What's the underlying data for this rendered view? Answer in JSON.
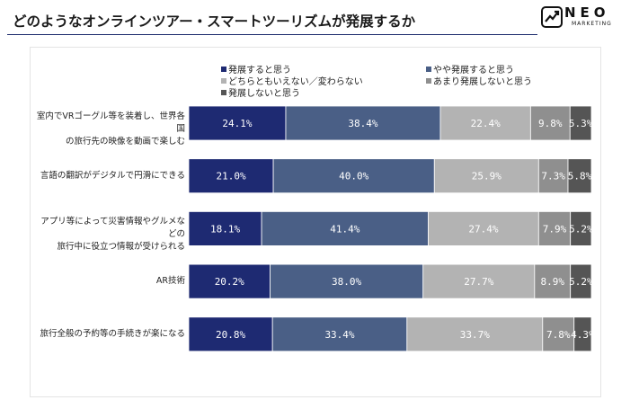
{
  "header": {
    "title": "どのようなオンラインツアー・スマートツーリズムが発展するか",
    "logo_word": "NEO",
    "logo_sub": "MARKETING",
    "logo_mark": "neo-marketing-logo-icon"
  },
  "colors": {
    "title_rule": "#1b2a6b",
    "series": [
      "#1e2a72",
      "#4a5f86",
      "#b3b3b3",
      "#8f8f8f",
      "#555555"
    ]
  },
  "chart_data": {
    "type": "bar",
    "orientation": "horizontal",
    "stacked": true,
    "percent": true,
    "legend_position": "top",
    "categories": [
      "室内でVRゴーグル等を装着し、世界各国の旅行先の映像を動画で楽しむ",
      "言語の翻訳がデジタルで円滑にできる",
      "アプリ等によって災害情報やグルメなどの旅行中に役立つ情報が受けられる",
      "AR技術",
      "旅行全般の予約等の手続きが楽になる"
    ],
    "category_lines": [
      [
        "室内でVRゴーグル等を装着し、世界各国",
        "の旅行先の映像を動画で楽しむ"
      ],
      [
        "言語の翻訳がデジタルで円滑にできる"
      ],
      [
        "アプリ等によって災害情報やグルメなどの",
        "旅行中に役立つ情報が受けられる"
      ],
      [
        "AR技術"
      ],
      [
        "旅行全般の予約等の手続きが楽になる"
      ]
    ],
    "series": [
      {
        "name": "発展すると思う",
        "values": [
          24.1,
          21.0,
          18.1,
          20.2,
          20.8
        ]
      },
      {
        "name": "やや発展すると思う",
        "values": [
          38.4,
          40.0,
          41.4,
          38.0,
          33.4
        ]
      },
      {
        "name": "どちらともいえない／変わらない",
        "values": [
          22.4,
          25.9,
          27.4,
          27.7,
          33.7
        ]
      },
      {
        "name": "あまり発展しないと思う",
        "values": [
          9.8,
          7.3,
          7.9,
          8.9,
          7.8
        ]
      },
      {
        "name": "発展しないと思う",
        "values": [
          5.3,
          5.8,
          5.2,
          5.2,
          4.3
        ]
      }
    ],
    "value_labels": [
      [
        "24.1%",
        "38.4%",
        "22.4%",
        "9.8%",
        "5.3%"
      ],
      [
        "21.0%",
        "40.0%",
        "25.9%",
        "7.3%",
        "5.8%"
      ],
      [
        "18.1%",
        "41.4%",
        "27.4%",
        "7.9%",
        "5.2%"
      ],
      [
        "20.2%",
        "38.0%",
        "27.7%",
        "8.9%",
        "5.2%"
      ],
      [
        "20.8%",
        "33.4%",
        "33.7%",
        "7.8%",
        "4.3%"
      ]
    ],
    "xlim": [
      0,
      100
    ]
  }
}
